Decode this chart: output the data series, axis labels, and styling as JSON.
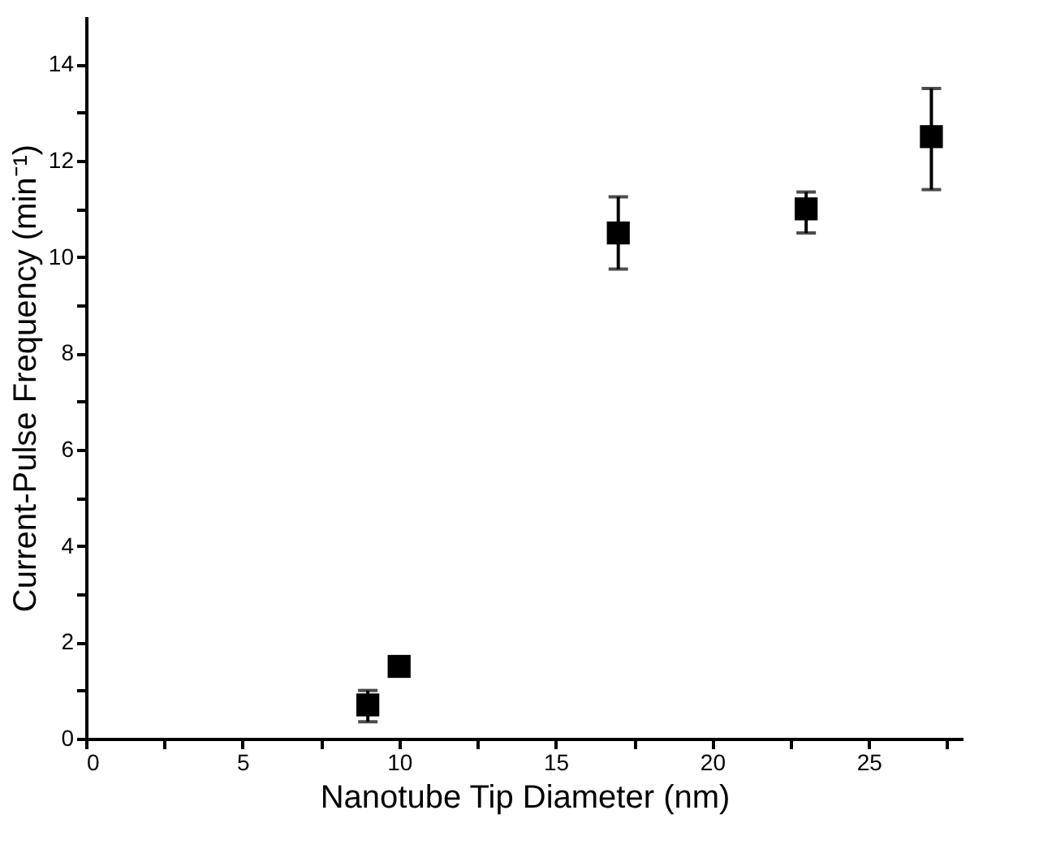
{
  "chart_data": {
    "type": "scatter",
    "xlabel": "Nanotube Tip Diameter (nm)",
    "ylabel": "Current-Pulse Frequency (min⁻¹)",
    "x": [
      9,
      10,
      17,
      23,
      27
    ],
    "series": [
      {
        "color": "#000000",
        "values": [
          0.7,
          1.5,
          10.5,
          11.0,
          12.5
        ],
        "errors": [
          [
            0.35,
            1.0
          ],
          null,
          [
            9.75,
            11.25
          ],
          [
            10.5,
            11.35
          ],
          [
            11.4,
            13.5
          ]
        ]
      }
    ],
    "marker": "square",
    "grid": false,
    "xlim": [
      0,
      28
    ],
    "ylim": [
      0,
      15
    ],
    "xticks": [
      0,
      {
        "value": 2.5,
        "label": null
      },
      5,
      {
        "value": 7.5,
        "label": null
      },
      10,
      {
        "value": 12.5,
        "label": null
      },
      15,
      {
        "value": 17.5,
        "label": null
      },
      20,
      {
        "value": 22.5,
        "label": null
      },
      25,
      {
        "value": 27.5,
        "label": null
      }
    ],
    "yticks": [
      0,
      {
        "value": 1,
        "label": null
      },
      2,
      {
        "value": 3,
        "label": null
      },
      4,
      {
        "value": 5,
        "label": null
      },
      6,
      {
        "value": 7,
        "label": null
      },
      8,
      {
        "value": 9,
        "label": null
      },
      10,
      {
        "value": 11,
        "label": null
      },
      12,
      {
        "value": 13,
        "label": null
      },
      14
    ]
  }
}
